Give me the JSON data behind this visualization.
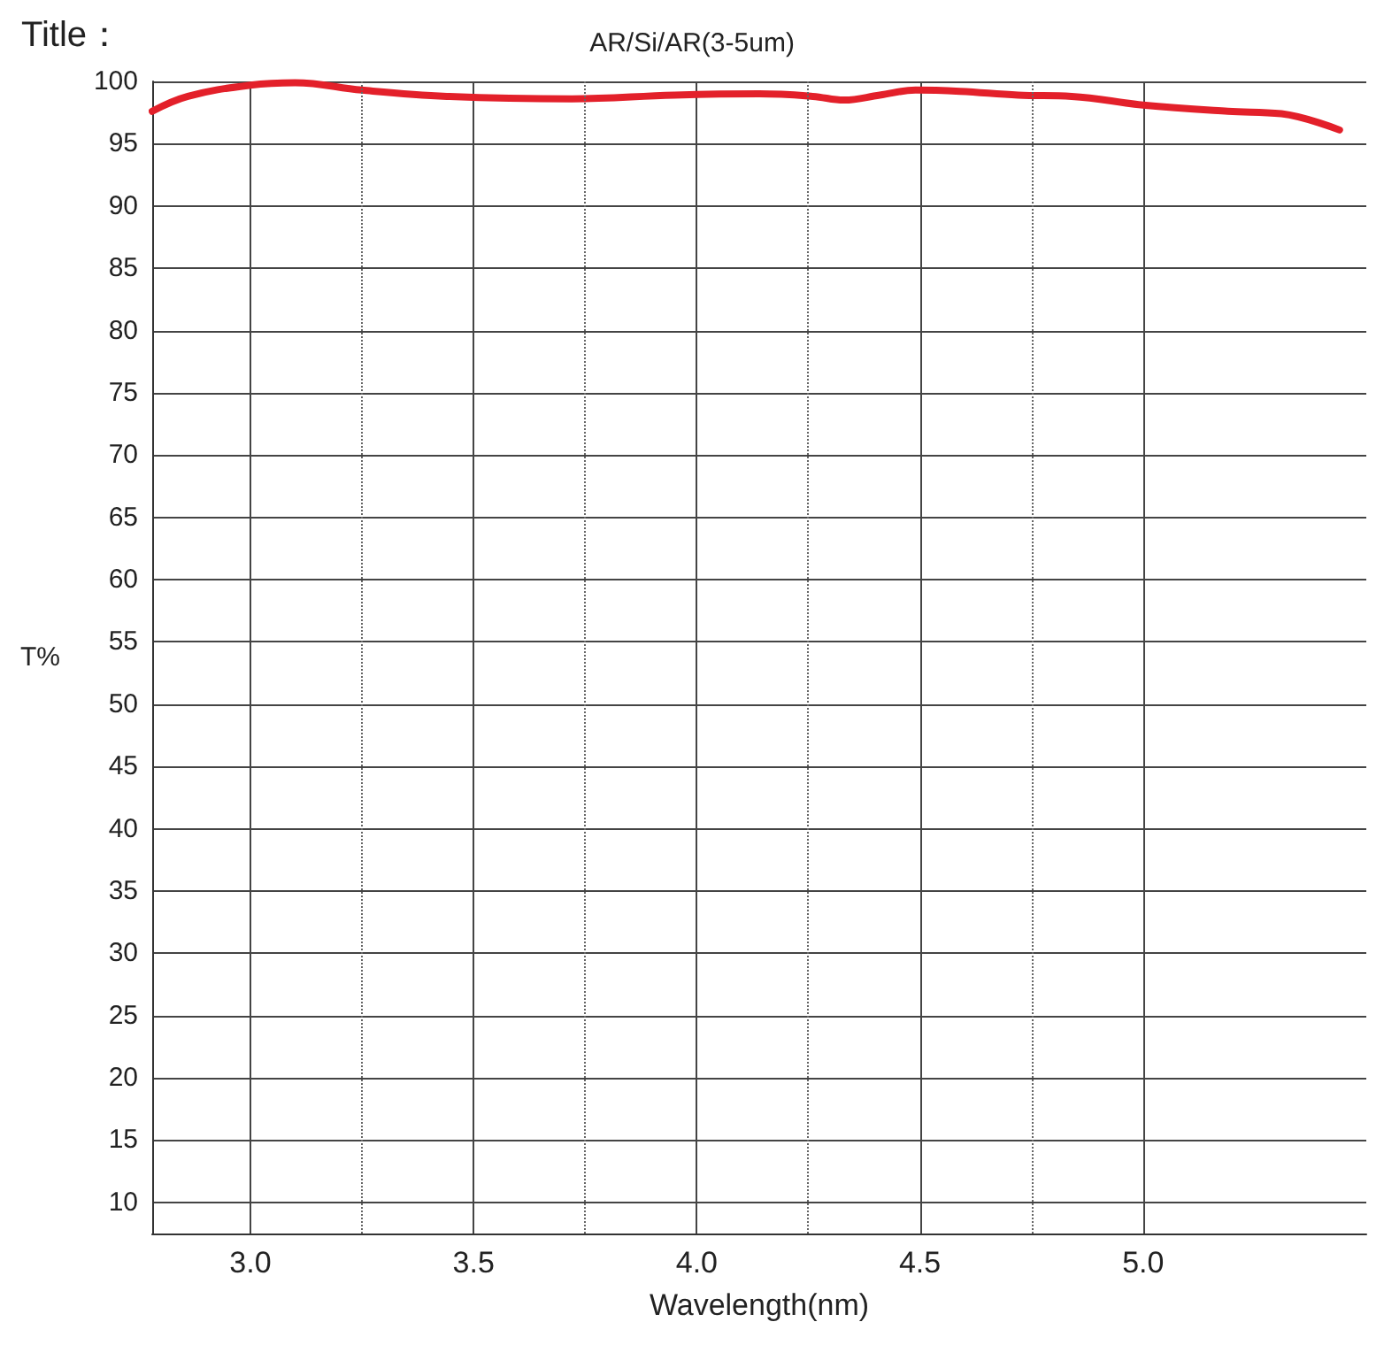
{
  "chart_data": {
    "type": "line",
    "title": "AR/Si/AR(3-5um)",
    "annotations": [
      "Title："
    ],
    "xlabel": "Wavelength(nm)",
    "ylabel": "T%",
    "x": [
      2.78,
      2.86,
      3.0,
      3.1,
      3.25,
      3.44,
      3.72,
      3.95,
      4.14,
      4.26,
      4.33,
      4.41,
      4.49,
      4.59,
      4.72,
      4.84,
      5.0,
      5.19,
      5.31,
      5.44
    ],
    "series": [
      {
        "color": "#e3202a",
        "values": [
          97.6,
          98.8,
          99.7,
          99.9,
          99.3,
          98.8,
          98.6,
          98.9,
          99.0,
          98.8,
          98.5,
          98.9,
          99.3,
          99.2,
          98.9,
          98.8,
          98.1,
          97.6,
          97.4,
          96.1
        ]
      }
    ],
    "xlim": [
      2.78,
      5.5
    ],
    "xticks": [
      {
        "value": 3.0,
        "label": "3.0"
      },
      {
        "value": 3.5,
        "label": "3.5"
      },
      {
        "value": 4.0,
        "label": "4.0"
      },
      {
        "value": 4.5,
        "label": "4.5"
      },
      {
        "value": 5.0,
        "label": "5.0"
      }
    ],
    "ylim": [
      7.5,
      100
    ],
    "yticks": [
      10,
      15,
      20,
      25,
      30,
      35,
      40,
      45,
      50,
      55,
      60,
      65,
      70,
      75,
      80,
      85,
      90,
      95,
      100
    ],
    "grid": true,
    "marker": "none",
    "line_style": "solid"
  }
}
